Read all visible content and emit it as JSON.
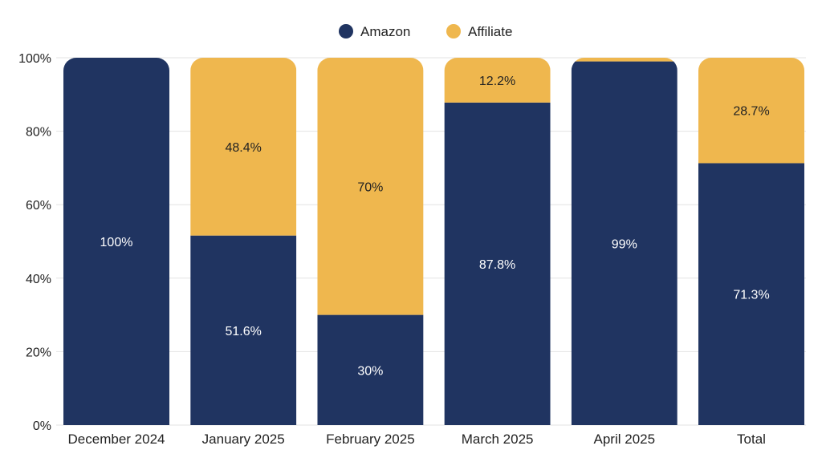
{
  "chart_data": {
    "type": "bar",
    "stacked": true,
    "percent": true,
    "categories": [
      "December 2024",
      "January 2025",
      "February 2025",
      "March 2025",
      "April 2025",
      "Total"
    ],
    "series": [
      {
        "name": "Amazon",
        "values": [
          100,
          51.6,
          30,
          87.8,
          99,
          71.3
        ],
        "labels": [
          "100%",
          "51.6%",
          "30%",
          "87.8%",
          "99%",
          "71.3%"
        ]
      },
      {
        "name": "Affiliate",
        "values": [
          0,
          48.4,
          70,
          12.2,
          1,
          28.7
        ],
        "labels": [
          "",
          "48.4%",
          "70%",
          "12.2%",
          "",
          "28.7%"
        ]
      }
    ],
    "ylim": [
      0,
      100
    ],
    "yticks": [
      "0%",
      "20%",
      "40%",
      "60%",
      "80%",
      "100%"
    ],
    "grid": true,
    "legend": "top-center",
    "colors": {
      "Amazon": "#203461",
      "Affiliate": "#EFB74E"
    },
    "label_colors": {
      "Amazon": "#ffffff",
      "Affiliate": "#222222"
    }
  }
}
